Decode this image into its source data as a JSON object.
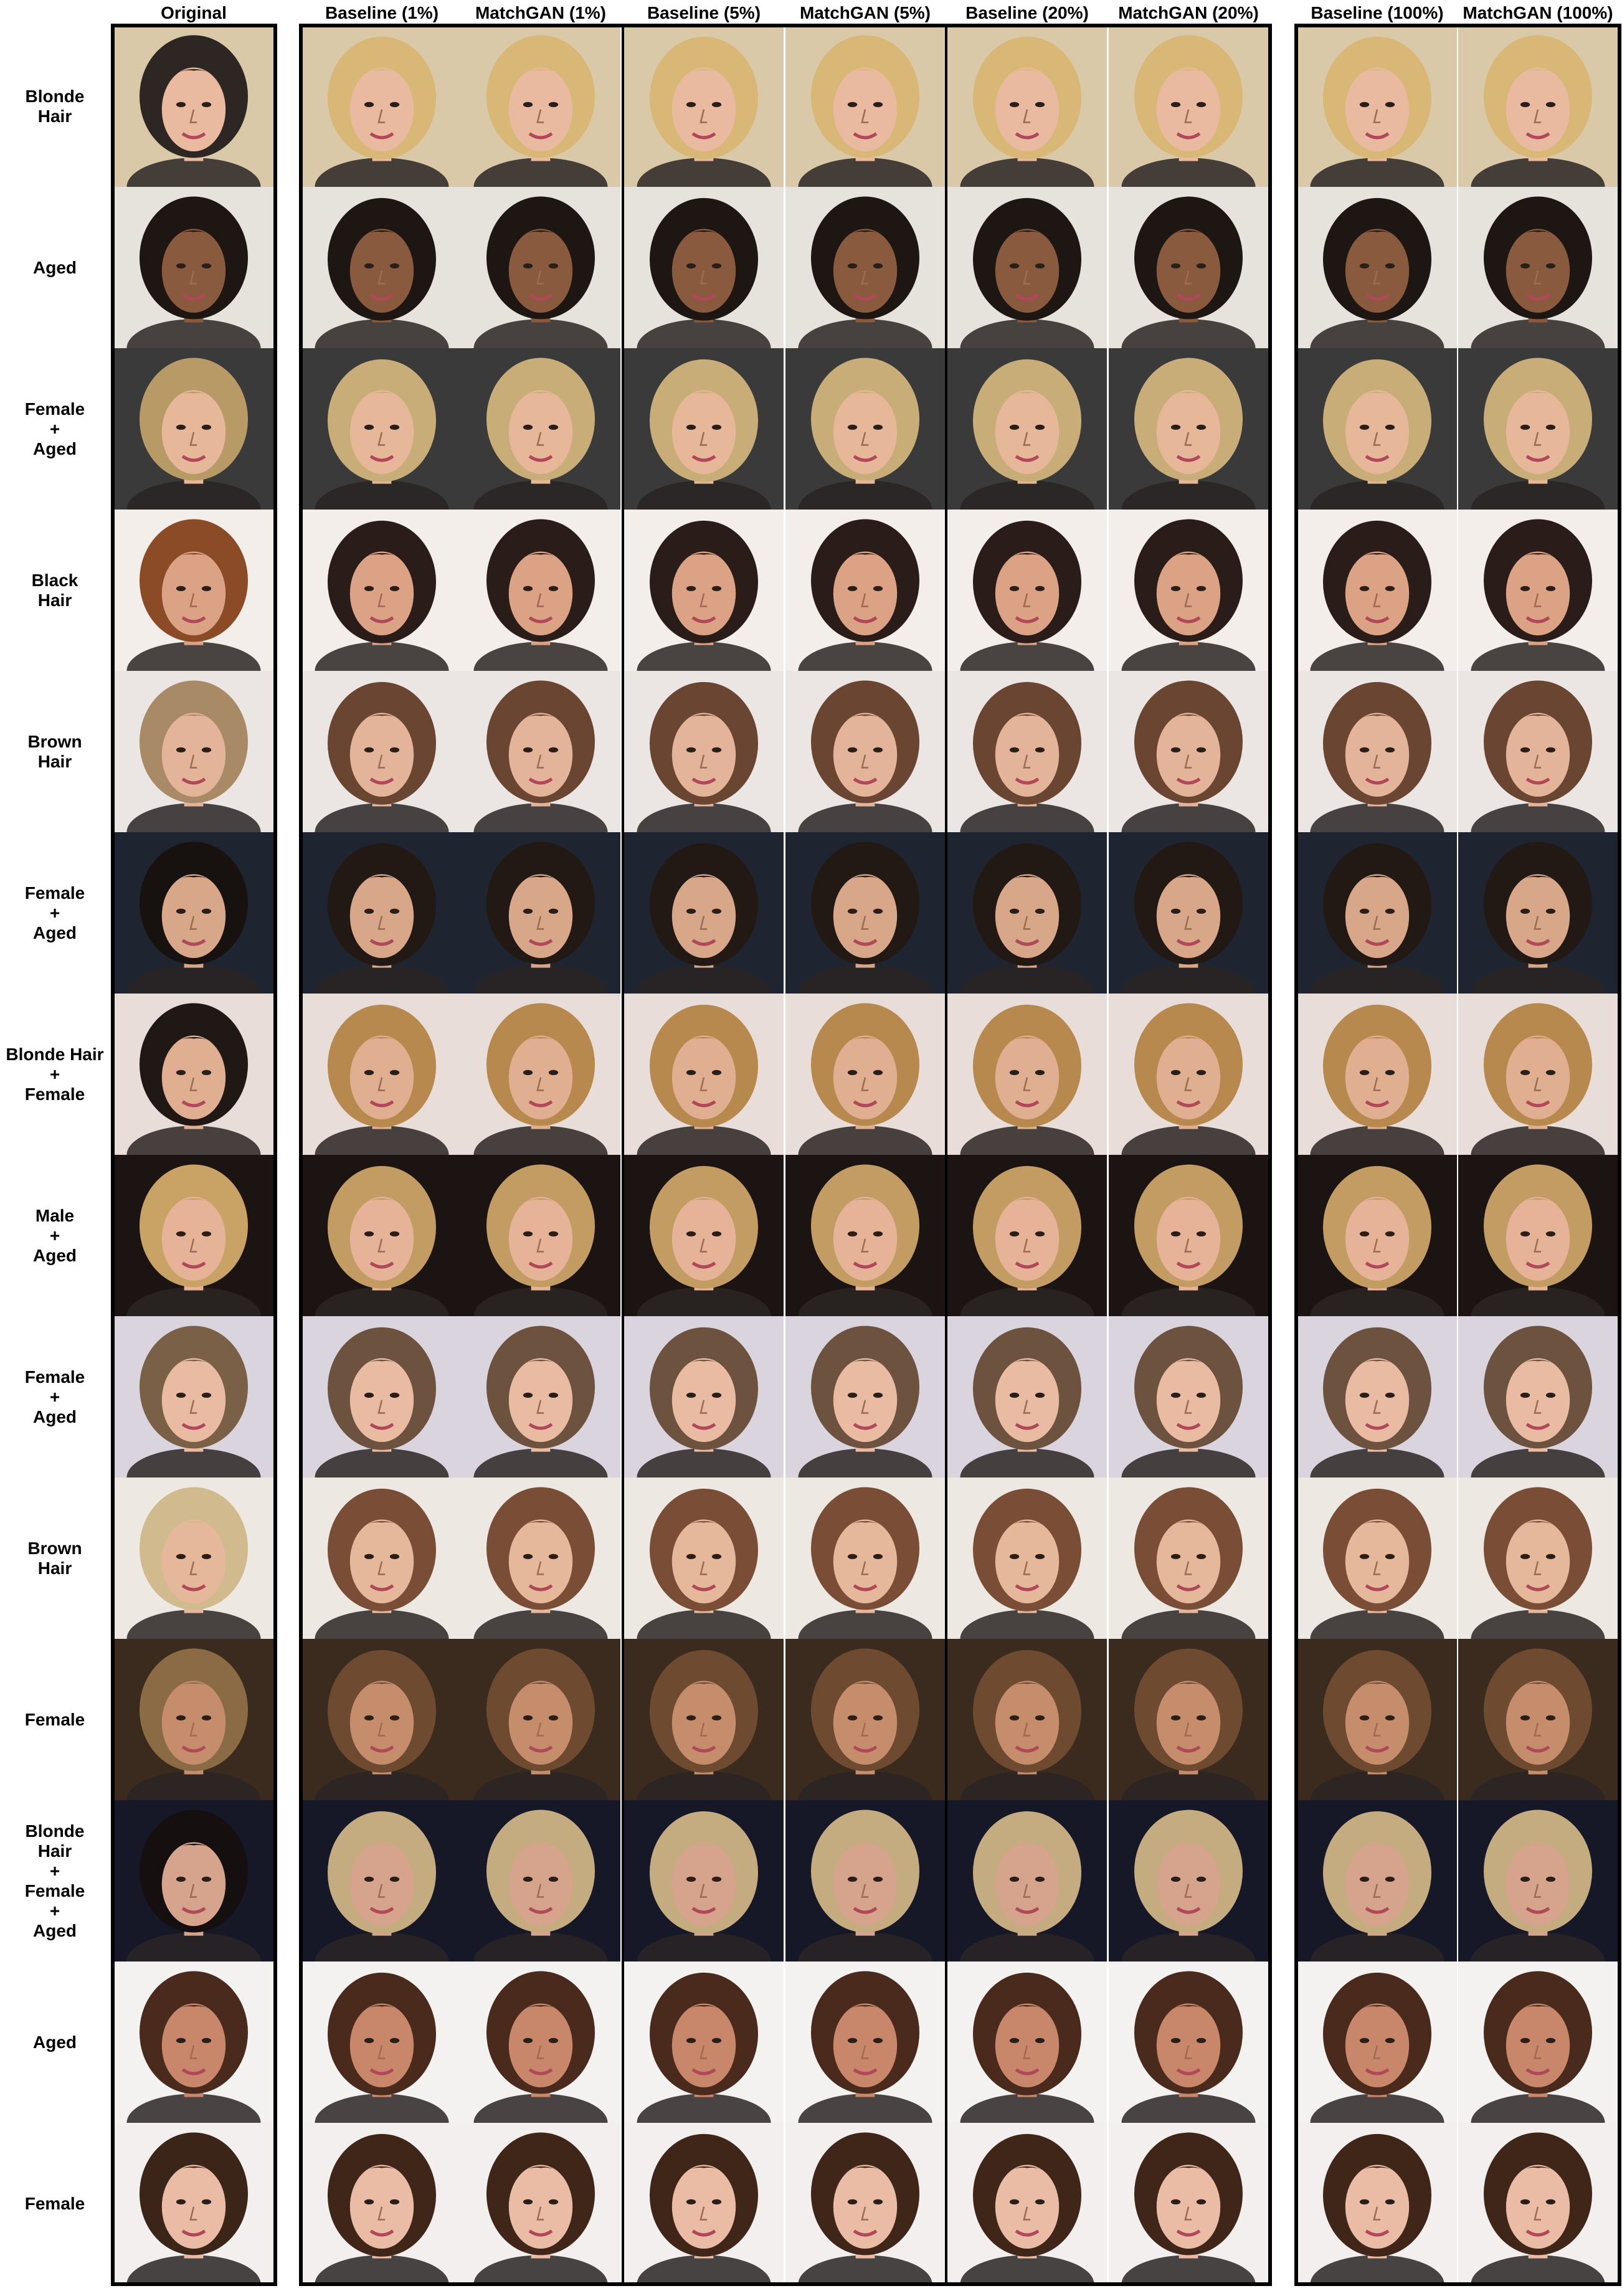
{
  "columns": [
    "Original",
    "Baseline (1%)",
    "MatchGAN (1%)",
    "Baseline (5%)",
    "MatchGAN (5%)",
    "Baseline (20%)",
    "MatchGAN (20%)",
    "Baseline (100%)",
    "MatchGAN (100%)"
  ],
  "rows": [
    {
      "label": "Blonde\nHair",
      "bg": "#d9c9a8",
      "skin": "#e9b9a0",
      "orig_hair": "#2e2622",
      "edit_hair": "#d9b777"
    },
    {
      "label": "Aged",
      "bg": "#e6e2dc",
      "skin": "#8a5a3e",
      "orig_hair": "#1d1613",
      "edit_hair": "#1d1613"
    },
    {
      "label": "Female\n+\nAged",
      "bg": "#3a3a3a",
      "skin": "#e7b79a",
      "orig_hair": "#b79a66",
      "edit_hair": "#c8ad78"
    },
    {
      "label": "Black\nHair",
      "bg": "#f3eeea",
      "skin": "#dca285",
      "orig_hair": "#8b4b26",
      "edit_hair": "#2a1c18"
    },
    {
      "label": "Brown\nHair",
      "bg": "#ebe6e4",
      "skin": "#e4b49a",
      "orig_hair": "#a88a66",
      "edit_hair": "#6a4632"
    },
    {
      "label": "Female\n+\nAged",
      "bg": "#1e2530",
      "skin": "#d8a78a",
      "orig_hair": "#17120f",
      "edit_hair": "#221915"
    },
    {
      "label": "Blonde Hair\n+\nFemale",
      "bg": "#e8ddd8",
      "skin": "#e0ae90",
      "orig_hair": "#201814",
      "edit_hair": "#b8894f"
    },
    {
      "label": "Male\n+\nAged",
      "bg": "#1c1412",
      "skin": "#e6b399",
      "orig_hair": "#c9a265",
      "edit_hair": "#c29c62"
    },
    {
      "label": "Female\n+\nAged",
      "bg": "#dad4de",
      "skin": "#e8bba2",
      "orig_hair": "#7a6046",
      "edit_hair": "#6e5240"
    },
    {
      "label": "Brown\nHair",
      "bg": "#eee8e2",
      "skin": "#e5b89c",
      "orig_hair": "#d1bb8e",
      "edit_hair": "#7a4e36"
    },
    {
      "label": "Female",
      "bg": "#3a2b1e",
      "skin": "#c58d6c",
      "orig_hair": "#8a6b45",
      "edit_hair": "#6d4a30"
    },
    {
      "label": "Blonde\nHair\n+\nFemale\n+\nAged",
      "bg": "#161828",
      "skin": "#d6a48c",
      "orig_hair": "#15100f",
      "edit_hair": "#c4ab80"
    },
    {
      "label": "Aged",
      "bg": "#f4f2f0",
      "skin": "#c8876a",
      "orig_hair": "#4a2a1c",
      "edit_hair": "#4a2a1c"
    },
    {
      "label": "Female",
      "bg": "#f2efee",
      "skin": "#eabca6",
      "orig_hair": "#3b2418",
      "edit_hair": "#3f2619"
    }
  ],
  "colors": {
    "frame": "#000000",
    "background": "#ffffff"
  }
}
